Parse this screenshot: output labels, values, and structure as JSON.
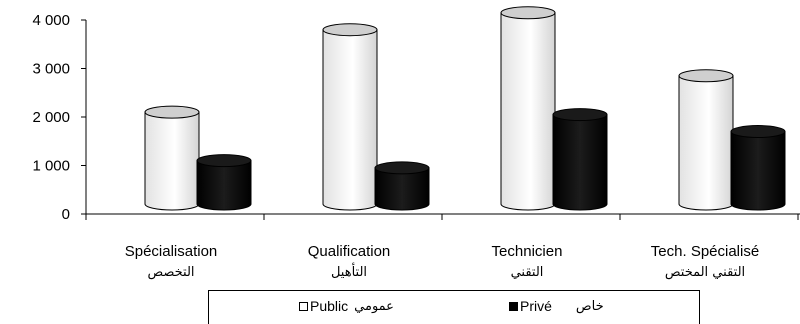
{
  "chart_data": {
    "type": "bar",
    "categories": [
      "Spécialisation",
      "Qualification",
      "Technicien",
      "Tech. Spécialisé"
    ],
    "categories_ar": [
      "التخصص",
      "التأهيل",
      "التقني",
      "التقني المختص"
    ],
    "series": [
      {
        "name": "Public",
        "name_ar": "عمومي",
        "values": [
          2100,
          3800,
          4150,
          2850
        ],
        "color": "#ffffff"
      },
      {
        "name": "Privé",
        "name_ar": "خاص",
        "values": [
          1100,
          950,
          2050,
          1700
        ],
        "color": "#000000"
      }
    ],
    "ylim": [
      0,
      4000
    ],
    "yticks": [
      0,
      1000,
      2000,
      3000,
      4000
    ],
    "ytick_labels": [
      "0",
      "1 000",
      "2 000",
      "3 000",
      "4 000"
    ],
    "title": "",
    "xlabel": "",
    "ylabel": "",
    "legend_position": "bottom"
  }
}
